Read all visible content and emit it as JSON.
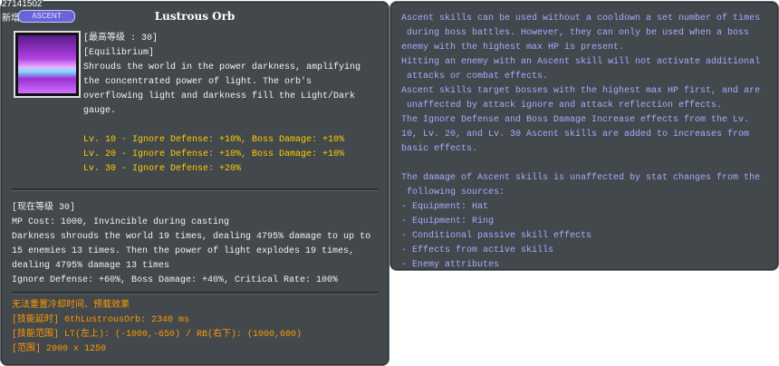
{
  "skill_id": "27141502",
  "new_label": "新增",
  "badge": "ASCENT",
  "title": "Lustrous Orb",
  "max_level": "[最高等级 : 30]",
  "element": "[Equilibrium]",
  "description": [
    "Shrouds the world in the power darkness, amplifying",
    "the concentrated power of light. The orb's",
    "overflowing light and darkness fill the Light/Dark",
    "gauge."
  ],
  "level_bonuses": [
    "Lv. 10 - Ignore Defense: +10%, Boss Damage: +10%",
    "Lv. 20 - Ignore Defense: +10%, Boss Damage: +10%",
    "Lv. 30 - Ignore Defense: +20%"
  ],
  "current_level": "[现在等级 30]",
  "current_effects": [
    "MP Cost: 1000, Invincible during casting",
    "Darkness shrouds the world 19 times, dealing 4795% damage to up to",
    "15 enemies 13 times. Then the power of light explodes 19 times,",
    "dealing 4795% damage 13 times",
    "Ignore Defense: +60%, Boss Damage: +40%, Critical Rate: 100%"
  ],
  "extra_info": [
    "无法重置冷却时间、预载效果",
    "[技能延时] 6thLustrousOrb: 2340 ms",
    "[技能范围] LT(左上): (-1000,-650) / RB(右下): (1000,600)",
    "[范围] 2000 x 1250"
  ],
  "ascent_notes": [
    "Ascent skills can be used without a cooldown a set number of times",
    " during boss battles. However, they can only be used when a boss",
    "enemy with the highest max HP is present.",
    "Hitting an enemy with an Ascent skill will not activate additional",
    " attacks or combat effects.",
    "Ascent skills target bosses with the highest max HP first, and are",
    " unaffected by attack ignore and attack reflection effects.",
    "The Ignore Defense and Boss Damage Increase effects from the Lv.",
    "10, Lv. 20, and Lv. 30 Ascent skills are added to increases from",
    "basic effects.",
    "",
    "The damage of Ascent skills is unaffected by stat changes from the",
    " following sources:",
    "- Equipment: Hat",
    "- Equipment: Ring",
    "- Conditional passive skill effects",
    "- Effects from active skills",
    "- Enemy attributes"
  ],
  "colors": {
    "panel": "#42484c",
    "white": "#f2f2f2",
    "bonus": "#ffcc00",
    "info": "#ff9900",
    "notes": "#aaaaff"
  }
}
